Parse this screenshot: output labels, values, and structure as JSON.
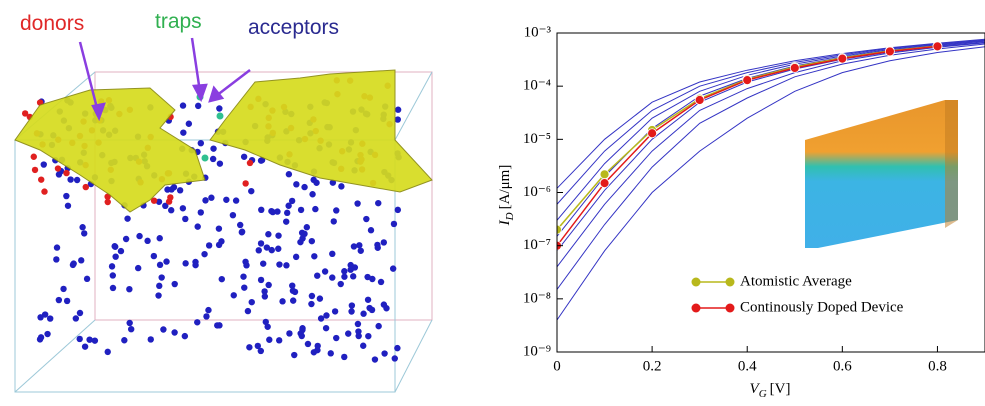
{
  "illustration": {
    "labels": {
      "donors": "donors",
      "traps": "traps",
      "acceptors": "acceptors"
    }
  },
  "chart_data": {
    "type": "line",
    "x_label": {
      "symbol": "V",
      "subscript": "G",
      "unit": "[V]"
    },
    "y_label": {
      "symbol": "I",
      "subscript": "D",
      "unit": "[A/μm]"
    },
    "x": [
      0,
      0.1,
      0.2,
      0.3,
      0.4,
      0.5,
      0.6,
      0.7,
      0.8,
      0.9
    ],
    "xlim": [
      0,
      0.9
    ],
    "xticks": [
      0,
      0.2,
      0.4,
      0.6,
      0.8
    ],
    "ylim": [
      1e-09,
      0.001
    ],
    "log_y": true,
    "yticks": [
      {
        "value": 1e-09,
        "label": "10⁻⁹"
      },
      {
        "value": 1e-08,
        "label": "10⁻⁸"
      },
      {
        "value": 1e-07,
        "label": "10⁻⁷"
      },
      {
        "value": 1e-06,
        "label": "10⁻⁶"
      },
      {
        "value": 1e-05,
        "label": "10⁻⁵"
      },
      {
        "value": 0.0001,
        "label": "10⁻⁴"
      },
      {
        "value": 0.001,
        "label": "10⁻³"
      }
    ],
    "legend": "lower center",
    "curves": {
      "color": "#3434c4",
      "lines": [
        [
          4e-09,
          8e-08,
          1e-06,
          6e-06,
          2.5e-05,
          8e-05,
          0.00018,
          0.0003,
          0.00043,
          0.00055
        ],
        [
          1.5e-08,
          2.5e-07,
          3e-06,
          2e-05,
          6e-05,
          0.00015,
          0.00026,
          0.00038,
          0.0005,
          0.00062
        ],
        [
          4e-08,
          6e-07,
          6e-06,
          3.5e-05,
          9e-05,
          0.00018,
          0.0003,
          0.00042,
          0.00054,
          0.00065
        ],
        [
          8e-08,
          1.1e-06,
          1e-05,
          5e-05,
          0.00012,
          0.00021,
          0.00032,
          0.00044,
          0.00056,
          0.00067
        ],
        [
          1.5e-07,
          2e-06,
          1.6e-05,
          6.5e-05,
          0.00014,
          0.00024,
          0.00035,
          0.00047,
          0.00058,
          0.0007
        ],
        [
          3e-07,
          3.5e-06,
          2.5e-05,
          8e-05,
          0.00016,
          0.00026,
          0.00037,
          0.00049,
          0.0006,
          0.00072
        ],
        [
          6e-07,
          6e-06,
          3.5e-05,
          0.0001,
          0.00018,
          0.00028,
          0.00039,
          0.00051,
          0.00062,
          0.00074
        ],
        [
          1.2e-06,
          1e-05,
          5e-05,
          0.00012,
          0.0002,
          0.0003,
          0.00041,
          0.00053,
          0.00064,
          0.00076
        ]
      ]
    },
    "series": [
      {
        "name": "Atomistic Average",
        "color": "#b8b81c",
        "values": [
          2e-07,
          2.2e-06,
          1.5e-05,
          5.8e-05,
          0.000135,
          0.00023,
          0.00034,
          0.00046,
          0.00057,
          null
        ]
      },
      {
        "name": "Continously Doped Device",
        "color": "#e31a1a",
        "values": [
          1e-07,
          1.5e-06,
          1.3e-05,
          5.5e-05,
          0.00013,
          0.00022,
          0.00033,
          0.00045,
          0.00056,
          null
        ]
      }
    ]
  }
}
